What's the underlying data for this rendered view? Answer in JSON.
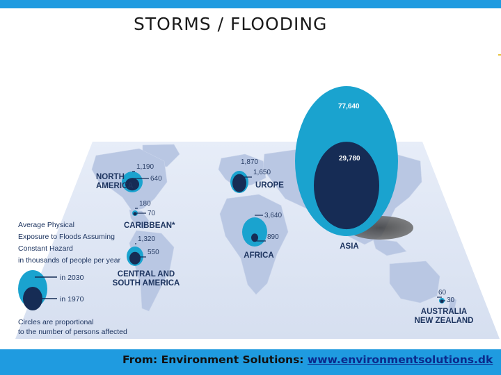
{
  "slide": {
    "title": "STORMS  /  FLOODING",
    "source_prefix": "From: Environment Solutions:",
    "source_link": "www.environmentsolutions.dk"
  },
  "legend": {
    "heading": [
      "Average Physical",
      "Exposure to Floods Assuming",
      "Constant Hazard",
      "in thousands of people per year"
    ],
    "label_2030": "in 2030",
    "label_1970": "in 1970",
    "note": [
      "Circles are proportional",
      "to the number of persons affected"
    ]
  },
  "colors": {
    "circle_2030": "#1aa3cf",
    "circle_1970": "#162c55",
    "map_land": "#b9c7e3",
    "map_sea": "#dfe6f4",
    "accent": "#1f9be0"
  },
  "chart_data": {
    "type": "bubble-map",
    "series": [
      {
        "name": "in 2030"
      },
      {
        "name": "in 1970"
      }
    ],
    "regions": [
      {
        "name": "NORTH AMERICA",
        "label_lines": [
          "NORTH",
          "AMERICA"
        ],
        "value_2030": 1190,
        "value_1970": 640,
        "label_2030": "1,190",
        "label_1970": "640"
      },
      {
        "name": "EUROPE",
        "label_lines": [
          "UROPE"
        ],
        "value_2030": 1870,
        "value_1970": 1650,
        "label_2030": "1,870",
        "label_1970": "1,650"
      },
      {
        "name": "CARIBBEAN*",
        "label_lines": [
          "CARIBBEAN*"
        ],
        "value_2030": 180,
        "value_1970": 70,
        "label_2030": "180",
        "label_1970": "70"
      },
      {
        "name": "CENTRAL AND SOUTH AMERICA",
        "label_lines": [
          "CENTRAL AND",
          "SOUTH AMERICA"
        ],
        "value_2030": 1320,
        "value_1970": 550,
        "label_2030": "1,320",
        "label_1970": "550"
      },
      {
        "name": "AFRICA",
        "label_lines": [
          "AFRICA"
        ],
        "value_2030": 3640,
        "value_1970": 890,
        "label_2030": "3,640",
        "label_1970": "890"
      },
      {
        "name": "ASIA",
        "label_lines": [
          "ASIA"
        ],
        "value_2030": 77640,
        "value_1970": 29780,
        "label_2030": "77,640",
        "label_1970": "29,780"
      },
      {
        "name": "AUSTRALIA NEW ZEALAND",
        "label_lines": [
          "AUSTRALIA",
          "NEW ZEALAND"
        ],
        "value_2030": 60,
        "value_1970": 30,
        "label_2030": "60",
        "label_1970": "30"
      }
    ]
  }
}
